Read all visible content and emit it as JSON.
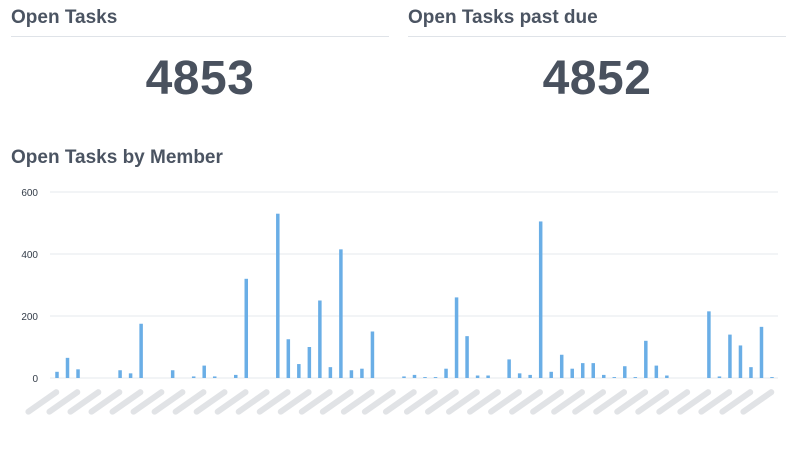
{
  "metrics": {
    "open_tasks_title": "Open Tasks",
    "open_tasks_value": "4853",
    "past_due_title": "Open Tasks past due",
    "past_due_value": "4852"
  },
  "chart_title": "Open Tasks by Member",
  "colors": {
    "bar": "#6aaee6",
    "grid": "#e5e8ec"
  },
  "chart_data": {
    "type": "bar",
    "title": "Open Tasks by Member",
    "xlabel": "",
    "ylabel": "",
    "ylim": [
      0,
      600
    ],
    "yticks": [
      0,
      200,
      400,
      600
    ],
    "grid": true,
    "categories_note_obscured": true,
    "values": [
      20,
      65,
      28,
      0,
      0,
      0,
      25,
      15,
      175,
      0,
      0,
      25,
      0,
      5,
      40,
      5,
      0,
      10,
      320,
      0,
      0,
      530,
      125,
      45,
      100,
      250,
      35,
      415,
      25,
      30,
      150,
      0,
      0,
      5,
      10,
      3,
      3,
      30,
      260,
      135,
      8,
      8,
      0,
      60,
      15,
      10,
      505,
      20,
      75,
      30,
      48,
      48,
      10,
      3,
      38,
      3,
      120,
      40,
      8,
      0,
      0,
      0,
      215,
      5,
      140,
      105,
      35,
      165,
      3
    ]
  }
}
